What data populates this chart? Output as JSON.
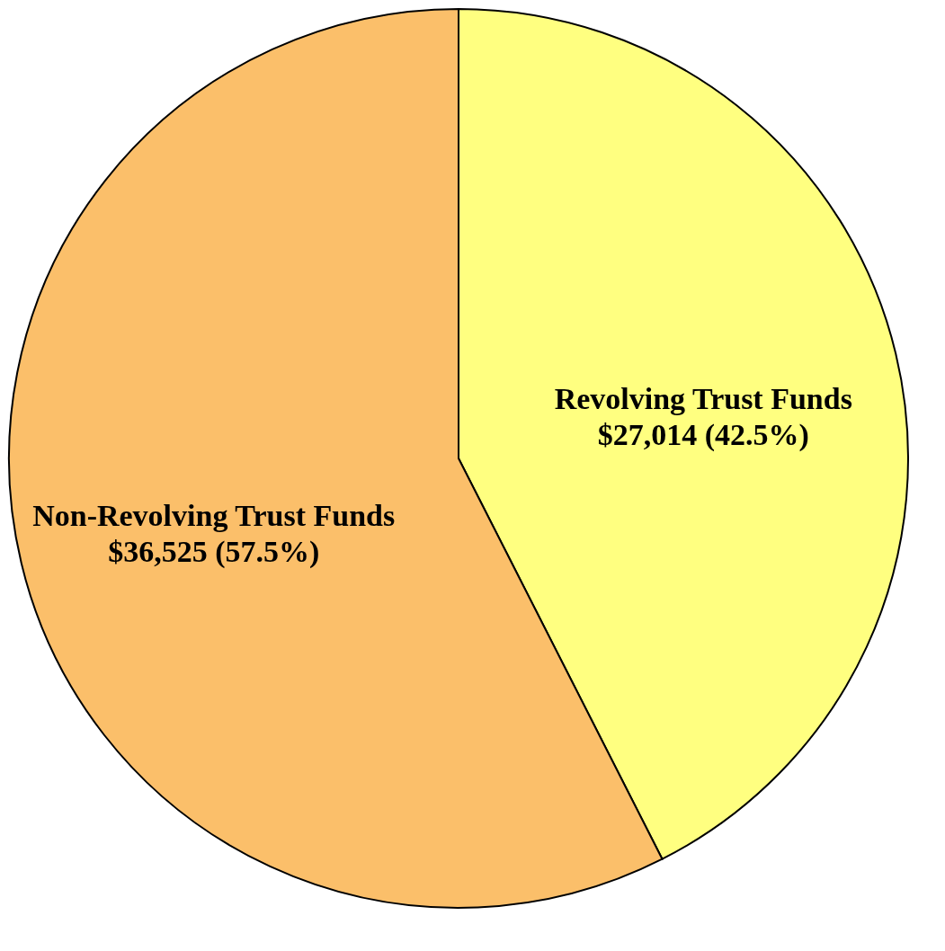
{
  "chart_data": {
    "type": "pie",
    "categories": [
      "Revolving Trust Funds",
      "Non-Revolving Trust Funds"
    ],
    "values": [
      27014,
      36525
    ],
    "colors": [
      "#ffff80",
      "#fbbf6a"
    ],
    "value_labels": [
      "$27,014  (42.5%)",
      "$36,525  (57.5%)"
    ],
    "legend": false
  }
}
